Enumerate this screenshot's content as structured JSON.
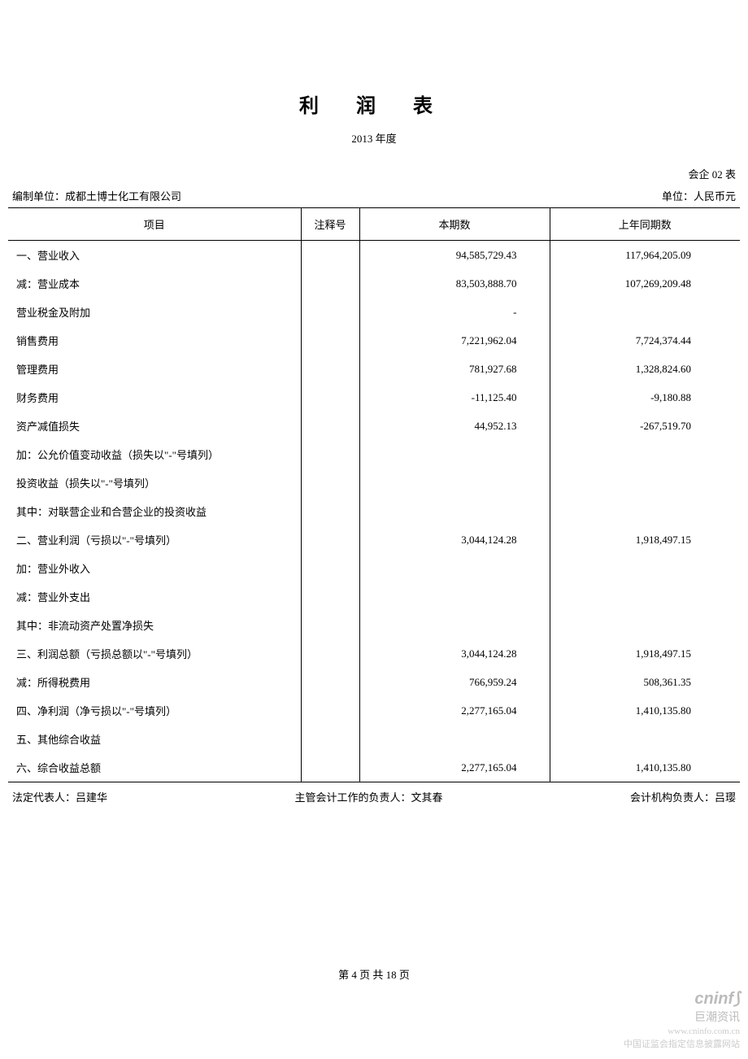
{
  "title": "利 润 表",
  "subtitle": "2013 年度",
  "form_code": "会企 02 表",
  "prepared_by_label": "编制单位：",
  "prepared_by": "成都土博士化工有限公司",
  "unit_label": "单位：人民币元",
  "columns": [
    "项目",
    "注释号",
    "本期数",
    "上年同期数"
  ],
  "rows": [
    {
      "item": "一、营业收入",
      "note": "",
      "current": "94,585,729.43",
      "prior": "117,964,205.09"
    },
    {
      "item": "减：营业成本",
      "note": "",
      "current": "83,503,888.70",
      "prior": "107,269,209.48"
    },
    {
      "item": "营业税金及附加",
      "note": "",
      "current": "-",
      "prior": ""
    },
    {
      "item": "销售费用",
      "note": "",
      "current": "7,221,962.04",
      "prior": "7,724,374.44"
    },
    {
      "item": "管理费用",
      "note": "",
      "current": "781,927.68",
      "prior": "1,328,824.60"
    },
    {
      "item": "财务费用",
      "note": "",
      "current": "-11,125.40",
      "prior": "-9,180.88"
    },
    {
      "item": "资产减值损失",
      "note": "",
      "current": "44,952.13",
      "prior": "-267,519.70"
    },
    {
      "item": "加：公允价值变动收益（损失以\"-\"号填列）",
      "note": "",
      "current": "",
      "prior": ""
    },
    {
      "item": "投资收益（损失以\"-\"号填列）",
      "note": "",
      "current": "",
      "prior": ""
    },
    {
      "item": "其中：对联营企业和合营企业的投资收益",
      "note": "",
      "current": "",
      "prior": ""
    },
    {
      "item": "二、营业利润（亏损以\"-\"号填列）",
      "note": "",
      "current": "3,044,124.28",
      "prior": "1,918,497.15"
    },
    {
      "item": "加：营业外收入",
      "note": "",
      "current": "",
      "prior": ""
    },
    {
      "item": "减：营业外支出",
      "note": "",
      "current": "",
      "prior": ""
    },
    {
      "item": "其中：非流动资产处置净损失",
      "note": "",
      "current": "",
      "prior": ""
    },
    {
      "item": "三、利润总额（亏损总额以\"-\"号填列）",
      "note": "",
      "current": "3,044,124.28",
      "prior": "1,918,497.15"
    },
    {
      "item": "减：所得税费用",
      "note": "",
      "current": "766,959.24",
      "prior": "508,361.35"
    },
    {
      "item": "四、净利润（净亏损以\"-\"号填列）",
      "note": "",
      "current": "2,277,165.04",
      "prior": "1,410,135.80"
    },
    {
      "item": "五、其他综合收益",
      "note": "",
      "current": "",
      "prior": ""
    },
    {
      "item": "六、综合收益总额",
      "note": "",
      "current": "2,277,165.04",
      "prior": "1,410,135.80"
    }
  ],
  "legal_rep_label": "法定代表人：",
  "legal_rep": "吕建华",
  "accounting_head_label": "主管会计工作的负责人：",
  "accounting_head": "文其春",
  "accounting_org_label": "会计机构负责人：",
  "accounting_org": "吕璎",
  "page_number": "第 4 页 共 18 页",
  "watermark": {
    "logo": "cninf",
    "brand": "巨潮资讯",
    "url": "www.cninfo.com.cn",
    "desc": "中国证监会指定信息披露网站"
  }
}
